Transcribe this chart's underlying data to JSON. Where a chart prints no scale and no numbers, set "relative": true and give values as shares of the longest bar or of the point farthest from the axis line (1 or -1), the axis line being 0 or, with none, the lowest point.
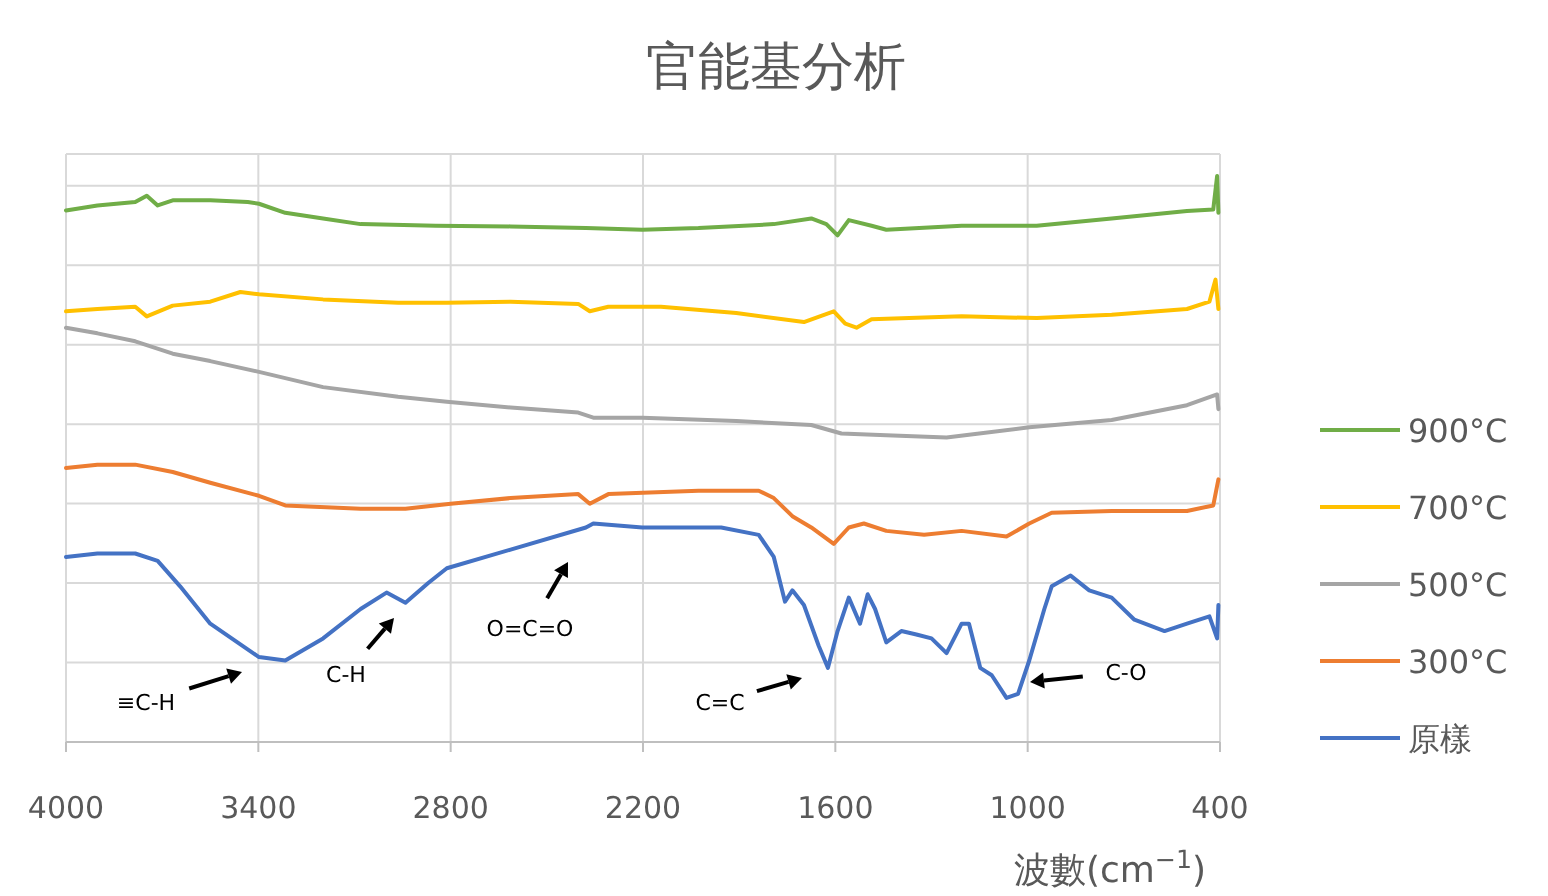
{
  "chart_data": {
    "type": "line",
    "title": "官能基分析",
    "xlabel": "波數(cm$^{−1}$)",
    "relative": true,
    "xlim": [
      4000,
      400
    ],
    "xticks": [
      4000,
      3400,
      2800,
      2200,
      1600,
      1000,
      400
    ],
    "grid": true,
    "legend": "right",
    "tick_labels": "x",
    "series": [
      {
        "name": "900°C",
        "color": "#70ad47",
        "x": [
          4000,
          3902,
          3784,
          3748,
          3714,
          3667,
          3550,
          3433,
          3398,
          3316,
          3198,
          3081,
          2847,
          2613,
          2378,
          2202,
          2027,
          1792,
          1675,
          1628,
          1593,
          1558,
          1487,
          1441,
          1206,
          972,
          738,
          503,
          421,
          409,
          405
        ],
        "values": [
          0.939,
          0.948,
          0.954,
          0.965,
          0.948,
          0.957,
          0.957,
          0.954,
          0.951,
          0.935,
          0.925,
          0.915,
          0.912,
          0.911,
          0.908,
          0.905,
          0.908,
          0.915,
          0.925,
          0.915,
          0.895,
          0.922,
          0.912,
          0.905,
          0.912,
          0.912,
          0.925,
          0.938,
          0.941,
          1.0,
          0.935
        ]
      },
      {
        "name": "700°C",
        "color": "#ffc000",
        "x": [
          4000,
          3902,
          3784,
          3748,
          3667,
          3550,
          3456,
          3398,
          3198,
          2964,
          2812,
          2613,
          2402,
          2366,
          2308,
          2144,
          1909,
          1698,
          1605,
          1569,
          1534,
          1487,
          1206,
          972,
          738,
          503,
          433,
          414,
          405
        ],
        "values": [
          0.761,
          0.765,
          0.769,
          0.752,
          0.771,
          0.778,
          0.795,
          0.791,
          0.782,
          0.776,
          0.776,
          0.778,
          0.774,
          0.761,
          0.769,
          0.769,
          0.758,
          0.742,
          0.761,
          0.739,
          0.732,
          0.747,
          0.752,
          0.749,
          0.755,
          0.765,
          0.778,
          0.817,
          0.765
        ]
      },
      {
        "name": "500°C",
        "color": "#a5a5a5",
        "x": [
          4000,
          3902,
          3784,
          3667,
          3550,
          3398,
          3198,
          2964,
          2812,
          2613,
          2402,
          2355,
          2202,
          1909,
          1675,
          1581,
          1441,
          1253,
          995,
          738,
          503,
          409,
          405
        ],
        "values": [
          0.732,
          0.722,
          0.708,
          0.686,
          0.673,
          0.654,
          0.627,
          0.61,
          0.601,
          0.591,
          0.582,
          0.573,
          0.573,
          0.567,
          0.56,
          0.545,
          0.542,
          0.538,
          0.556,
          0.569,
          0.595,
          0.614,
          0.588
        ]
      },
      {
        "name": "300°C",
        "color": "#ed7d31",
        "x": [
          4000,
          3902,
          3784,
          3667,
          3550,
          3398,
          3316,
          3081,
          2941,
          2800,
          2613,
          2402,
          2366,
          2308,
          2027,
          1839,
          1792,
          1734,
          1675,
          1605,
          1558,
          1511,
          1441,
          1323,
          1206,
          1066,
          995,
          925,
          738,
          503,
          421,
          405
        ],
        "values": [
          0.484,
          0.49,
          0.49,
          0.477,
          0.458,
          0.435,
          0.418,
          0.412,
          0.412,
          0.421,
          0.431,
          0.438,
          0.421,
          0.438,
          0.444,
          0.444,
          0.431,
          0.399,
          0.379,
          0.35,
          0.379,
          0.386,
          0.373,
          0.366,
          0.373,
          0.363,
          0.386,
          0.405,
          0.408,
          0.408,
          0.418,
          0.464
        ]
      },
      {
        "name": "原樣",
        "color": "#4472c4",
        "x": [
          4000,
          3902,
          3784,
          3714,
          3644,
          3550,
          3398,
          3316,
          3198,
          3081,
          3000,
          2941,
          2870,
          2812,
          2613,
          2378,
          2355,
          2202,
          1956,
          1839,
          1792,
          1757,
          1734,
          1698,
          1652,
          1623,
          1593,
          1558,
          1523,
          1499,
          1476,
          1441,
          1394,
          1347,
          1300,
          1253,
          1206,
          1183,
          1148,
          1112,
          1066,
          1030,
          995,
          948,
          925,
          866,
          808,
          738,
          667,
          573,
          503,
          433,
          409,
          405
        ],
        "values": [
          0.327,
          0.333,
          0.333,
          0.32,
          0.275,
          0.209,
          0.15,
          0.144,
          0.183,
          0.235,
          0.264,
          0.246,
          0.281,
          0.307,
          0.34,
          0.379,
          0.386,
          0.379,
          0.379,
          0.366,
          0.327,
          0.248,
          0.268,
          0.242,
          0.17,
          0.131,
          0.196,
          0.255,
          0.209,
          0.261,
          0.235,
          0.176,
          0.196,
          0.19,
          0.183,
          0.157,
          0.209,
          0.209,
          0.131,
          0.118,
          0.078,
          0.085,
          0.144,
          0.235,
          0.275,
          0.294,
          0.268,
          0.255,
          0.216,
          0.196,
          0.209,
          0.222,
          0.183,
          0.242
        ]
      }
    ],
    "annotations": [
      "≡C-H",
      "C-H",
      "O=C=O",
      "C=C",
      "C-O"
    ]
  }
}
